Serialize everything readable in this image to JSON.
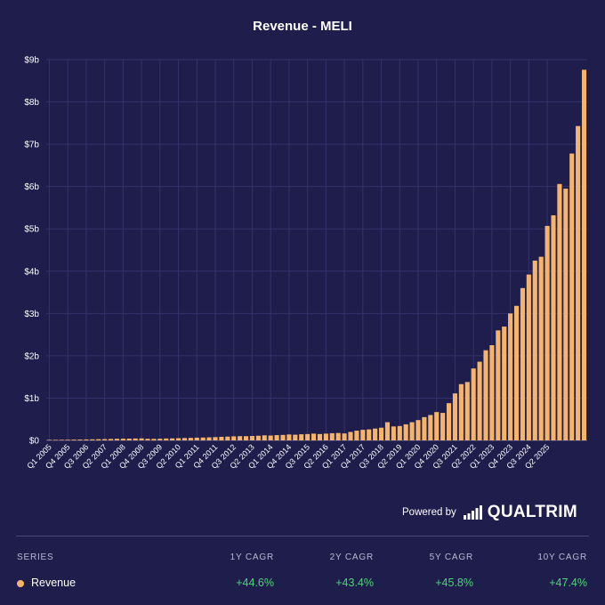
{
  "chart_data": {
    "type": "bar",
    "title": "Revenue - MELI",
    "xlabel": "",
    "ylabel": "",
    "ylim": [
      0,
      9
    ],
    "y_ticks": [
      "$0",
      "$1b",
      "$2b",
      "$3b",
      "$4b",
      "$5b",
      "$6b",
      "$7b",
      "$8b",
      "$9b"
    ],
    "x_tick_labels": [
      "Q1 2005",
      "Q4 2005",
      "Q3 2006",
      "Q2 2007",
      "Q1 2008",
      "Q4 2008",
      "Q3 2009",
      "Q2 2010",
      "Q1 2011",
      "Q4 2011",
      "Q3 2012",
      "Q2 2013",
      "Q1 2014",
      "Q4 2014",
      "Q3 2015",
      "Q2 2016",
      "Q1 2017",
      "Q4 2017",
      "Q3 2018",
      "Q2 2019",
      "Q1 2020",
      "Q4 2020",
      "Q3 2021",
      "Q2 2022",
      "Q1 2023",
      "Q4 2023",
      "Q3 2024",
      "Q2 2025"
    ],
    "x_start": "Q1 2005",
    "x_end": "Q3 2025",
    "grid": true,
    "unit": "billions USD",
    "series": [
      {
        "name": "Revenue",
        "color": "#f6b46a",
        "values": [
          0.01,
          0.012,
          0.014,
          0.016,
          0.018,
          0.02,
          0.022,
          0.025,
          0.028,
          0.031,
          0.034,
          0.038,
          0.04,
          0.042,
          0.045,
          0.048,
          0.038,
          0.036,
          0.04,
          0.045,
          0.048,
          0.052,
          0.056,
          0.06,
          0.065,
          0.068,
          0.072,
          0.078,
          0.085,
          0.09,
          0.096,
          0.1,
          0.1,
          0.105,
          0.11,
          0.12,
          0.115,
          0.125,
          0.13,
          0.14,
          0.135,
          0.145,
          0.15,
          0.16,
          0.15,
          0.16,
          0.17,
          0.175,
          0.165,
          0.2,
          0.23,
          0.25,
          0.26,
          0.28,
          0.3,
          0.43,
          0.33,
          0.34,
          0.38,
          0.43,
          0.48,
          0.55,
          0.6,
          0.67,
          0.65,
          0.88,
          1.11,
          1.33,
          1.38,
          1.7,
          1.86,
          2.13,
          2.25,
          2.6,
          2.69,
          3.0,
          3.18,
          3.6,
          3.92,
          4.25,
          4.34,
          5.07,
          5.32,
          6.06,
          5.95,
          6.78,
          7.43,
          8.76
        ]
      }
    ]
  },
  "footer": {
    "powered_by": "Powered by",
    "brand": "QUALTRIM"
  },
  "table": {
    "headers": [
      "SERIES",
      "1Y CAGR",
      "2Y CAGR",
      "5Y CAGR",
      "10Y CAGR"
    ],
    "rows": [
      {
        "series": "Revenue",
        "dot_color": "#f6b46a",
        "cagr_1y": "+44.6%",
        "cagr_2y": "+43.4%",
        "cagr_5y": "+45.8%",
        "cagr_10y": "+47.4%"
      }
    ]
  }
}
